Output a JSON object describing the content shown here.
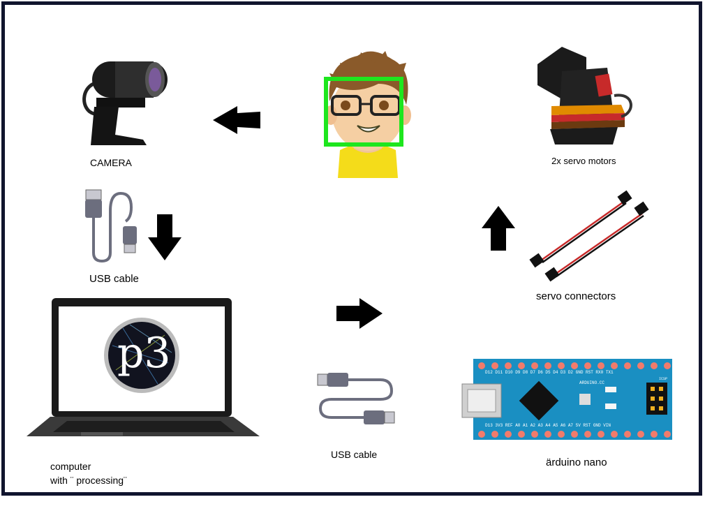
{
  "labels": {
    "camera": "CAMERA",
    "usb_cable_1": "USB cable",
    "computer_line1": "computer",
    "computer_line2": "with ¨ processing¨",
    "usb_cable_2": "USB cable",
    "arduino": "ärduino nano",
    "servo_connectors": "servo connectors",
    "servo_motors": "2x servo motors"
  },
  "logo_text": "p3",
  "board_text": {
    "top_pins": "D12 D11 D10 D9 D8 D7 D6 D5 D4 D3 D2 GND RST RX0 TX1",
    "bottom_pins": "D13 3V3 REF A0 A1 A2 A3 A4 A5 A6 A7 5V RST GND VIN",
    "model": "ARDUINO.CC",
    "icsp": "ICSP"
  },
  "colors": {
    "border": "#10142e",
    "face_box": "#1ee61e",
    "board": "#1a8fc2",
    "pin": "#f27b6b",
    "arrow": "#000000"
  }
}
